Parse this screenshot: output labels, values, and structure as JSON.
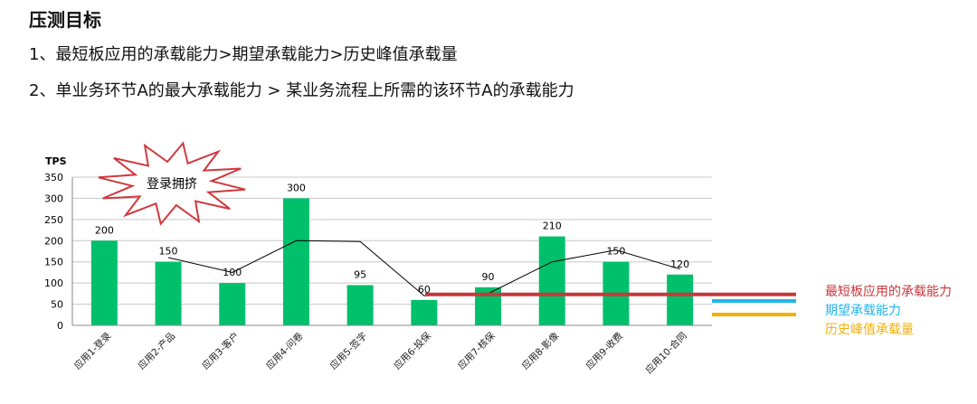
{
  "slide": {
    "title": "压测目标",
    "line1": "1、最短板应用的承载能力>期望承载能力>历史峰值承载量",
    "line2": "2、单业务环节A的最大承载能力 > 某业务流程上所需的该环节A的承载能力"
  },
  "chart_data": {
    "type": "bar",
    "ylabel": "TPS",
    "ylim": [
      0,
      350
    ],
    "yticks": [
      0,
      50,
      100,
      150,
      200,
      250,
      300,
      350
    ],
    "grid": true,
    "categories": [
      "应用1-登录",
      "应用2-产品",
      "应用3-客户",
      "应用4-问卷",
      "应用5-签字",
      "应用6-投保",
      "应用7-核保",
      "应用8-影像",
      "应用9-收费",
      "应用10-合同"
    ],
    "values": [
      200,
      150,
      100,
      300,
      95,
      60,
      90,
      210,
      150,
      120
    ],
    "data_labels": [
      "200",
      "150",
      "100",
      "300",
      "95",
      "60",
      "90",
      "210",
      "150",
      "120"
    ],
    "bar_color": "#00C06B",
    "overlay_line": {
      "color": "#000000",
      "values": [
        null,
        160,
        125,
        200,
        198,
        70,
        75,
        150,
        178,
        133
      ]
    },
    "annotation": {
      "text": "登录拥挤",
      "shape": "starburst",
      "stroke": "#D0383D"
    },
    "reference_lines": [
      {
        "name": "最短板应用的承载能力",
        "value": 73,
        "color": "#C8373C"
      },
      {
        "name": "期望承载能力",
        "color": "#22B5E8"
      },
      {
        "name": "历史峰值承载量",
        "color": "#F6B000"
      }
    ]
  }
}
